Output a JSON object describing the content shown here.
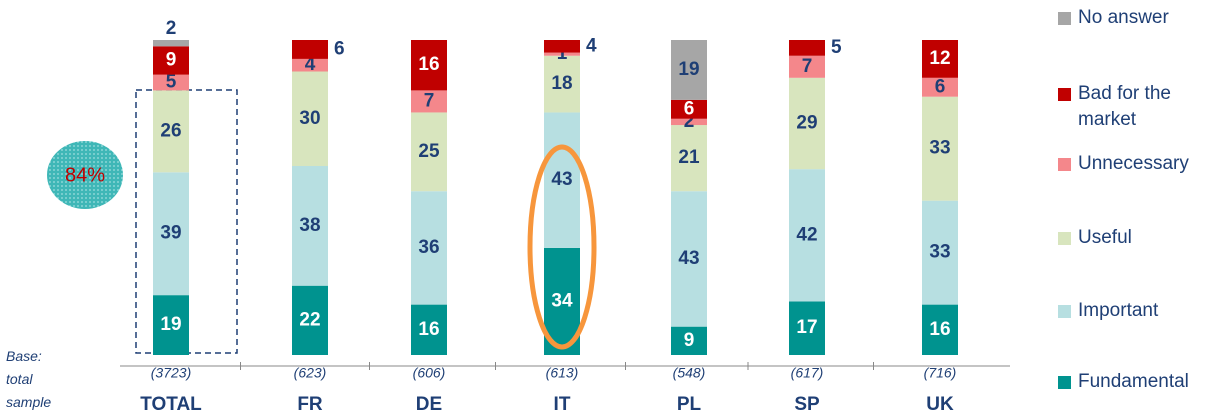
{
  "chart_data": {
    "type": "stacked_bar",
    "categories": [
      "TOTAL",
      "FR",
      "DE",
      "IT",
      "PL",
      "SP",
      "UK"
    ],
    "base_labels": [
      "(3723)",
      "(623)",
      "(606)",
      "(613)",
      "(548)",
      "(617)",
      "(716)"
    ],
    "series": [
      {
        "name": "Fundamental",
        "color": "#00938f",
        "values": [
          19,
          22,
          16,
          34,
          9,
          17,
          16
        ]
      },
      {
        "name": "Important",
        "color": "#b7dfe1",
        "values": [
          39,
          38,
          36,
          43,
          43,
          42,
          33
        ]
      },
      {
        "name": "Useful",
        "color": "#d8e5be",
        "values": [
          26,
          30,
          25,
          18,
          21,
          29,
          33
        ]
      },
      {
        "name": "Unnecessary",
        "color": "#f4878b",
        "values": [
          5,
          4,
          7,
          1,
          2,
          7,
          6
        ]
      },
      {
        "name": "Bad for the market",
        "color": "#c00000",
        "values": [
          9,
          6,
          16,
          4,
          6,
          5,
          12
        ]
      },
      {
        "name": "No answer",
        "color": "#a6a6a6",
        "values": [
          2,
          null,
          null,
          null,
          19,
          null,
          null
        ]
      }
    ],
    "ylim": [
      0,
      100
    ],
    "annotations": {
      "highlight": "84%",
      "base": "Base: total sample"
    }
  }
}
